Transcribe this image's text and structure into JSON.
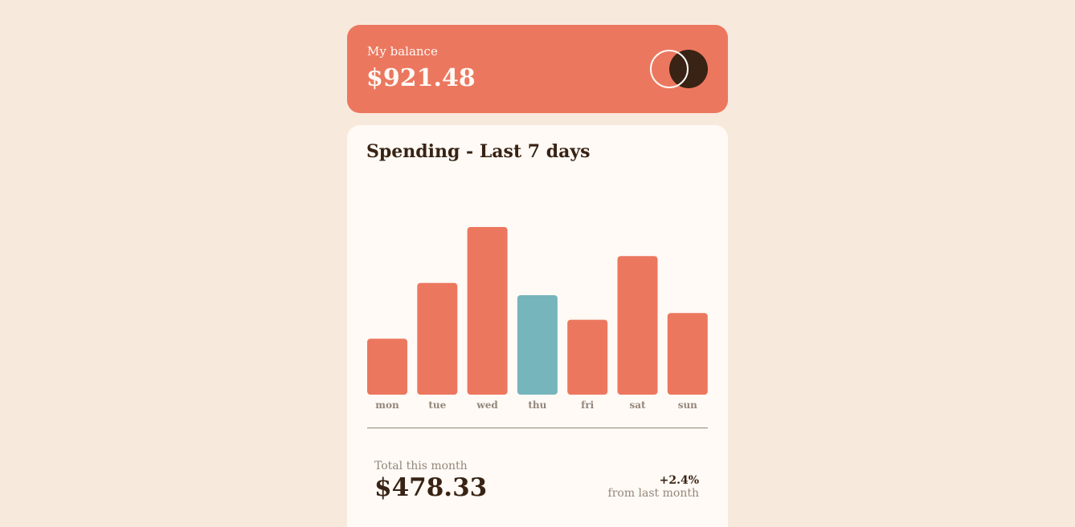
{
  "balance": {
    "label": "My balance",
    "amount": "$921.48"
  },
  "spending": {
    "title": "Spending - Last 7 days"
  },
  "chart_data": {
    "type": "bar",
    "categories": [
      "mon",
      "tue",
      "wed",
      "thu",
      "fri",
      "sat",
      "sun"
    ],
    "values": [
      17.45,
      34.91,
      52.36,
      31.07,
      23.39,
      43.28,
      25.48
    ],
    "highlight": "thu",
    "bar_color": "#ec775f",
    "highlight_color": "#76b5bc"
  },
  "summary": {
    "total_label": "Total this month",
    "total_amount": "$478.33",
    "change_value": "+2.4%",
    "change_label": "from last month"
  },
  "colors": {
    "background": "#f8e9dd",
    "accent": "#ec775f",
    "highlight": "#76b5bc",
    "dark": "#382314",
    "muted": "#93867b",
    "card": "#fffaf5"
  }
}
